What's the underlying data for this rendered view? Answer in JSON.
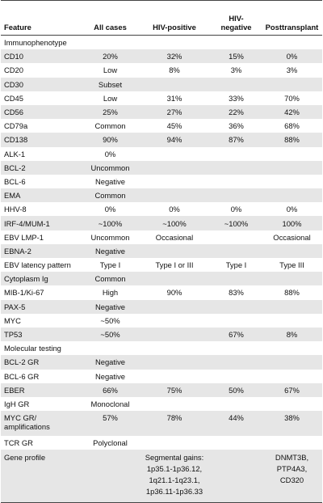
{
  "headers": [
    "Feature",
    "All cases",
    "HIV-positive",
    "HIV-\nnegative",
    "Posttransplant"
  ],
  "rows": [
    [
      "Immunophenotype",
      "",
      "",
      "",
      ""
    ],
    [
      "CD10",
      "20%",
      "32%",
      "15%",
      "0%"
    ],
    [
      "CD20",
      "Low",
      "8%",
      "3%",
      "3%"
    ],
    [
      "CD30",
      "Subset",
      "",
      "",
      ""
    ],
    [
      "CD45",
      "Low",
      "31%",
      "33%",
      "70%"
    ],
    [
      "CD56",
      "25%",
      "27%",
      "22%",
      "42%"
    ],
    [
      "CD79a",
      "Common",
      "45%",
      "36%",
      "68%"
    ],
    [
      "CD138",
      "90%",
      "94%",
      "87%",
      "88%"
    ],
    [
      "ALK-1",
      "0%",
      "",
      "",
      ""
    ],
    [
      "BCL-2",
      "Uncommon",
      "",
      "",
      ""
    ],
    [
      "BCL-6",
      "Negative",
      "",
      "",
      ""
    ],
    [
      "EMA",
      "Common",
      "",
      "",
      ""
    ],
    [
      "HHV-8",
      "0%",
      "0%",
      "0%",
      "0%"
    ],
    [
      "IRF-4/MUM-1",
      "~100%",
      "~100%",
      "~100%",
      "100%"
    ],
    [
      "EBV LMP-1",
      "Uncommon",
      "Occasional",
      "",
      "Occasional"
    ],
    [
      "EBNA-2",
      "Negative",
      "",
      "",
      ""
    ],
    [
      "EBV latency pattern",
      "Type I",
      "Type I or III",
      "Type I",
      "Type III"
    ],
    [
      "Cytoplasm Ig",
      "Common",
      "",
      "",
      ""
    ],
    [
      "MIB-1/Ki-67",
      "High",
      "90%",
      "83%",
      "88%"
    ],
    [
      "PAX-5",
      "Negative",
      "",
      "",
      ""
    ],
    [
      "MYC",
      "~50%",
      "",
      "",
      ""
    ],
    [
      "TP53",
      "~50%",
      "",
      "67%",
      "8%"
    ],
    [
      "Molecular testing",
      "",
      "",
      "",
      ""
    ],
    [
      "BCL-2 GR",
      "Negative",
      "",
      "",
      ""
    ],
    [
      "BCL-6 GR",
      "Negative",
      "",
      "",
      ""
    ],
    [
      "EBER",
      "66%",
      "75%",
      "50%",
      "67%"
    ],
    [
      "IgH GR",
      "Monoclonal",
      "",
      "",
      ""
    ],
    [
      "MYC GR/\namplifications",
      "57%",
      "78%",
      "44%",
      "38%"
    ],
    [
      "TCR GR",
      "Polyclonal",
      "",
      "",
      ""
    ],
    [
      "Gene profile",
      "",
      "Segmental gains:\n1p35.1-1p36.12,\n1q21.1-1q23.1,\n1p36.11-1p36.33",
      "",
      "DNMT3B,\nPTP4A3,\nCD320"
    ]
  ]
}
